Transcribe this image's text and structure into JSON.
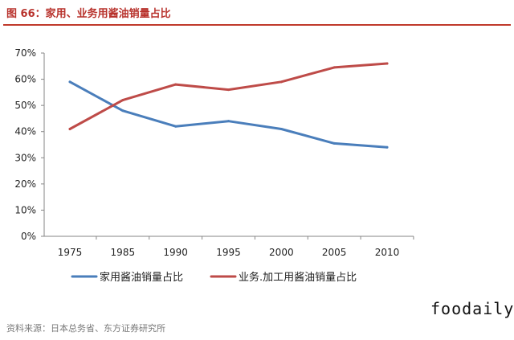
{
  "figure": {
    "title": "图 66：家用、业务用酱油销量占比",
    "source": "资料来源：日本总务省、东方证券研究所",
    "watermark": "foodaily",
    "title_color": "#b8322c"
  },
  "chart_data": {
    "type": "line",
    "x": [
      "1975",
      "1985",
      "1990",
      "1995",
      "2000",
      "2005",
      "2010"
    ],
    "series": [
      {
        "name": "家用酱油销量占比",
        "color": "#4a7ebb",
        "values": [
          59,
          48,
          42,
          44,
          41,
          35.5,
          34
        ]
      },
      {
        "name": "业务.加工用酱油销量占比",
        "color": "#be4b48",
        "values": [
          41,
          52,
          58,
          56,
          59,
          64.5,
          66
        ]
      }
    ],
    "yticks": [
      "0%",
      "10%",
      "20%",
      "30%",
      "40%",
      "50%",
      "60%",
      "70%"
    ],
    "ylim": [
      0,
      70
    ],
    "grid": false,
    "legend_position": "bottom"
  }
}
